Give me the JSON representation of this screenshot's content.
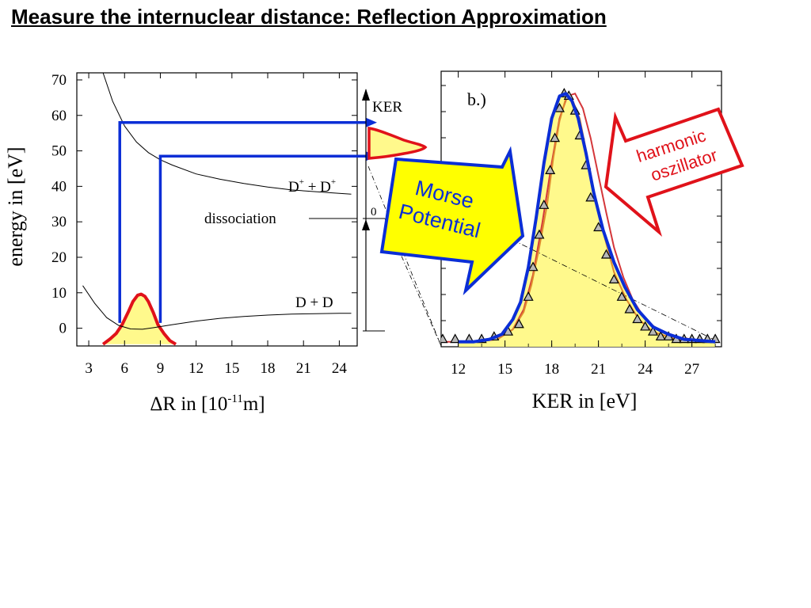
{
  "slide": {
    "title": "Measure the internuclear distance: Reflection Approximation"
  },
  "chart_data": [
    {
      "type": "line",
      "panel": "a",
      "xlabel_prefix": "ΔR in [10",
      "xlabel_exp": "-11",
      "xlabel_suffix": "m]",
      "ylabel": "energy in [eV]",
      "xlim": [
        2,
        25.5
      ],
      "ylim": [
        -5,
        72
      ],
      "xticks": [
        3,
        6,
        9,
        12,
        15,
        18,
        21,
        24
      ],
      "yticks": [
        0,
        10,
        20,
        30,
        40,
        50,
        60,
        70
      ],
      "curves": {
        "d_plus_d_plus_label": "D+ + D+",
        "d_plus_d_plus_parts": [
          "D",
          "+",
          " + D",
          "+"
        ],
        "d_d_label": "D + D",
        "dissociation_label": "dissociation",
        "ker_label": "KER",
        "zero_label": "0"
      },
      "coulomb_curve": {
        "x": [
          4.2,
          5,
          6,
          7,
          8,
          9,
          10,
          12,
          14,
          16,
          18,
          20,
          22,
          24,
          25
        ],
        "y": [
          72,
          64,
          57,
          52.5,
          49.5,
          47.5,
          46,
          43.5,
          42,
          40.8,
          39.8,
          39,
          38.5,
          38,
          37.8
        ]
      },
      "ground_curve": {
        "x": [
          2.5,
          3.5,
          4.5,
          5.5,
          6.5,
          7.5,
          8.5,
          10,
          12,
          14,
          16,
          18,
          20,
          22,
          24,
          25
        ],
        "y": [
          12,
          7,
          3,
          0.8,
          -0.2,
          -0.3,
          0.2,
          1,
          2,
          2.8,
          3.3,
          3.7,
          4,
          4.1,
          4.2,
          4.2
        ]
      },
      "wavefunction": {
        "x": [
          4.2,
          4.8,
          5.3,
          5.8,
          6.3,
          6.7,
          7.1,
          7.4,
          7.7,
          8.0,
          8.4,
          8.8,
          9.3,
          9.8,
          10.3
        ],
        "y": [
          -4.5,
          -3,
          -1.5,
          1,
          4.5,
          7.5,
          9.3,
          9.6,
          9,
          7.5,
          4.5,
          1,
          -1.5,
          -3.5,
          -4.5
        ]
      },
      "projections": [
        {
          "x": 5.6,
          "energy": 58
        },
        {
          "x": 9.0,
          "energy": 48.5
        }
      ],
      "colors": {
        "projection": "#0b2ed6",
        "wavefunction": "#e0121a",
        "fill": "#fff98c"
      }
    },
    {
      "type": "scatter",
      "panel": "b",
      "panel_label": "b.)",
      "xlabel": "KER in [eV]",
      "xlim": [
        10.9,
        28.9
      ],
      "ylim": [
        -0.02,
        1.09
      ],
      "xticks": [
        12,
        15,
        18,
        21,
        24,
        27
      ],
      "markers": {
        "x": [
          11.0,
          11.8,
          12.7,
          13.5,
          14.3,
          15.2,
          15.9,
          16.5,
          16.8,
          17.2,
          17.5,
          17.9,
          18.2,
          18.5,
          18.8,
          19.1,
          19.5,
          19.8,
          20.2,
          20.5,
          21.0,
          21.5,
          22.0,
          22.5,
          23.0,
          23.5,
          24.0,
          24.5,
          25.0,
          25.5,
          26.0,
          26.5,
          27.0,
          27.5,
          28.0,
          28.5
        ],
        "y": [
          0.01,
          0.01,
          0.01,
          0.01,
          0.02,
          0.04,
          0.07,
          0.18,
          0.3,
          0.43,
          0.55,
          0.69,
          0.82,
          0.94,
          1.0,
          0.99,
          0.93,
          0.83,
          0.71,
          0.58,
          0.46,
          0.35,
          0.25,
          0.18,
          0.13,
          0.09,
          0.06,
          0.04,
          0.02,
          0.02,
          0.01,
          0.01,
          0.01,
          0.01,
          0.01,
          0.01
        ]
      },
      "series": [
        {
          "key": "morse",
          "x": [
            12,
            13,
            14,
            14.8,
            15.5,
            16.0,
            16.5,
            17.0,
            17.5,
            18.0,
            18.5,
            18.9,
            19.3,
            19.7,
            20.2,
            20.7,
            21.3,
            22.0,
            22.7,
            23.5,
            24.5,
            25.5,
            26.5,
            28.5
          ],
          "y": [
            0.0,
            0.0,
            0.01,
            0.03,
            0.09,
            0.16,
            0.3,
            0.5,
            0.72,
            0.9,
            0.99,
            1.0,
            0.97,
            0.9,
            0.76,
            0.6,
            0.45,
            0.32,
            0.22,
            0.13,
            0.06,
            0.03,
            0.01,
            0.0
          ],
          "color": "#0b2ed6"
        },
        {
          "key": "harmonic",
          "x": [
            11.0,
            13,
            14.5,
            15.5,
            16.2,
            16.8,
            17.4,
            18.0,
            18.5,
            19.0,
            19.5,
            20.0,
            20.5,
            21.0,
            21.5,
            22.0,
            22.6,
            23.2,
            24.0,
            25.0,
            26.0,
            27.0,
            28.7
          ],
          "y": [
            0.0,
            0.0,
            0.01,
            0.05,
            0.13,
            0.27,
            0.48,
            0.72,
            0.9,
            0.99,
            1.0,
            0.94,
            0.82,
            0.67,
            0.52,
            0.38,
            0.26,
            0.17,
            0.09,
            0.04,
            0.02,
            0.01,
            0.0
          ],
          "color": "#d4373a"
        },
        {
          "key": "orange",
          "x": [
            14.5,
            15.5,
            16.2,
            16.7,
            17.2,
            17.7,
            18.1,
            18.5,
            18.9,
            19.3,
            19.8,
            20.3,
            20.8,
            21.4,
            22.0,
            22.8,
            23.6,
            24.5,
            25.5,
            26.5
          ],
          "y": [
            0.01,
            0.05,
            0.12,
            0.23,
            0.38,
            0.55,
            0.74,
            0.89,
            0.98,
            0.98,
            0.9,
            0.74,
            0.58,
            0.42,
            0.28,
            0.17,
            0.09,
            0.04,
            0.02,
            0.0
          ],
          "color": "#e08a2e"
        }
      ],
      "dashdot": {
        "x": [
          11.0,
          28.7
        ],
        "y": [
          0.55,
          0.0
        ]
      }
    }
  ],
  "callouts": {
    "morse_lines": [
      "Morse",
      "Potential"
    ],
    "harmonic_lines": [
      "harmonic",
      "oszillator"
    ],
    "morse_color": "#0b2ed6",
    "morse_fill": "#ffff00",
    "harmonic_color": "#e0121a"
  }
}
